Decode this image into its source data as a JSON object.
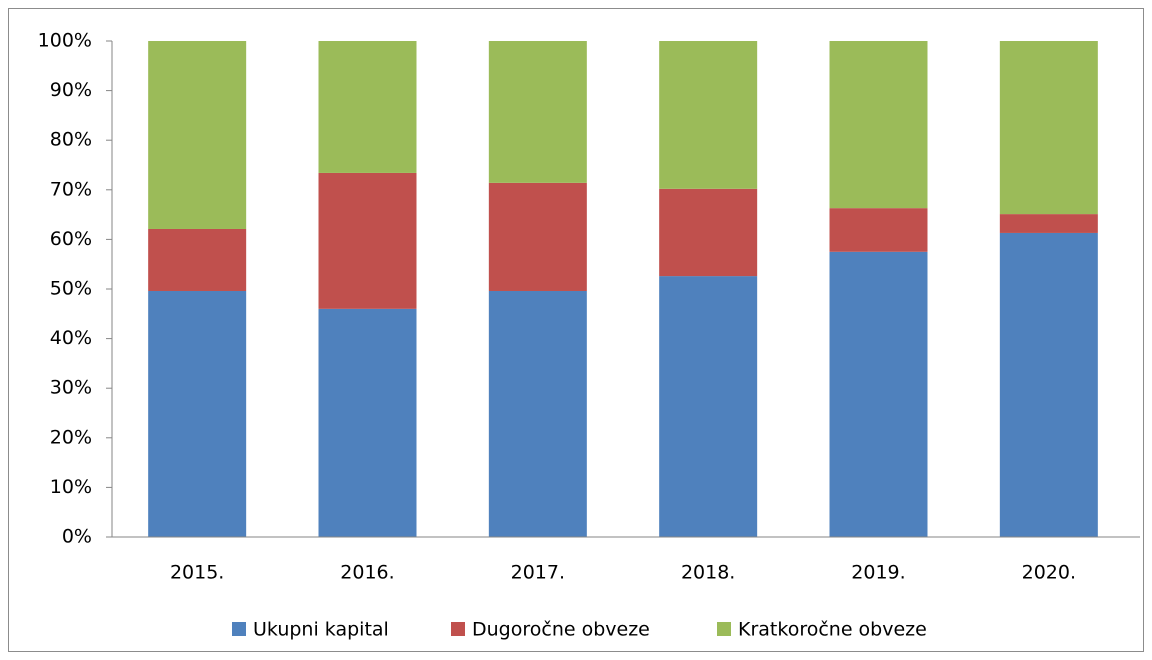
{
  "chart_data": {
    "type": "stacked_bar",
    "categories": [
      "2015.",
      "2016.",
      "2017.",
      "2018.",
      "2019.",
      "2020."
    ],
    "series": [
      {
        "name": "Ukupni kapital",
        "color": "#4f81bd",
        "values": [
          49.6,
          46,
          49.6,
          52.6,
          57.5,
          61.3
        ]
      },
      {
        "name": "Dugoročne obveze",
        "color": "#c0504d",
        "values": [
          12.5,
          27.4,
          21.8,
          17.6,
          8.8,
          3.8
        ]
      },
      {
        "name": "Kratkoročne obveze",
        "color": "#9bbb59",
        "values": [
          37.9,
          26.6,
          28.6,
          29.8,
          33.7,
          34.9
        ]
      }
    ],
    "ylim": [
      0,
      100
    ],
    "yticks": [
      {
        "value": 0,
        "label": "0%"
      },
      {
        "value": 10,
        "label": "10%"
      },
      {
        "value": 20,
        "label": "20%"
      },
      {
        "value": 30,
        "label": "30%"
      },
      {
        "value": 40,
        "label": "40%"
      },
      {
        "value": 50,
        "label": "50%"
      },
      {
        "value": 60,
        "label": "60%"
      },
      {
        "value": 70,
        "label": "70%"
      },
      {
        "value": 80,
        "label": "80%"
      },
      {
        "value": 90,
        "label": "90%"
      },
      {
        "value": 100,
        "label": "100%"
      }
    ],
    "grid": false,
    "legend": "bottom"
  }
}
